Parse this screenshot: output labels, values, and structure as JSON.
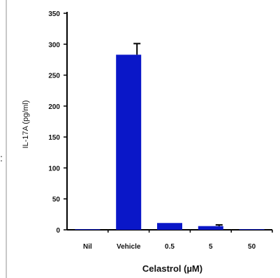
{
  "chart_data": {
    "type": "bar",
    "title": "",
    "xlabel": "Celastrol (µM)",
    "ylabel": "IL-17A (pg/ml)",
    "categories": [
      "Nil",
      "Vehicle",
      "0.5",
      "5",
      "50"
    ],
    "values": [
      1,
      283,
      11,
      6,
      1
    ],
    "errors": [
      0,
      18,
      0,
      2,
      0
    ],
    "ylim": [
      0,
      350
    ],
    "yticks": [
      "0",
      "50",
      "100",
      "150",
      "200",
      "250",
      "300",
      "350"
    ],
    "bar_color": "#0a17c8",
    "grid": false,
    "legend": "none"
  },
  "edge_glyph": ":"
}
